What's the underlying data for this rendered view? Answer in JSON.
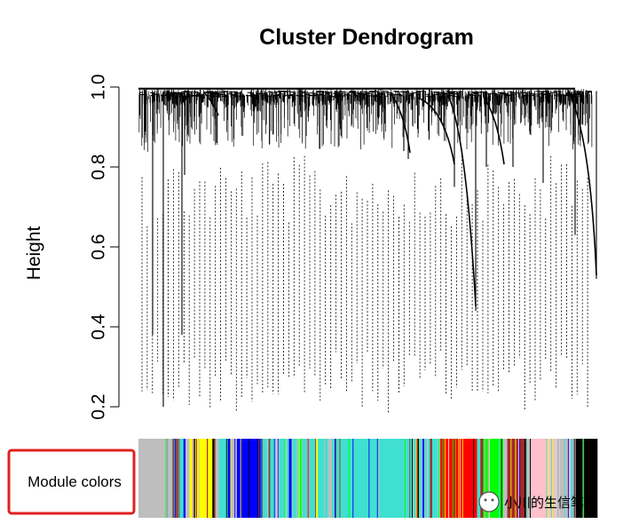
{
  "chart_data": {
    "type": "dendrogram",
    "title": "Cluster Dendrogram",
    "xlabel": "",
    "ylabel": "Height",
    "ylim": [
      0.2,
      1.0
    ],
    "y_ticks": [
      0.2,
      0.4,
      0.6,
      0.8,
      1.0
    ],
    "y_tick_labels": [
      "0.2",
      "0.4",
      "0.6",
      "0.8",
      "1.0"
    ],
    "module_colors_label": "Module colors",
    "module_colors": [
      {
        "color": "#bebebe",
        "span": 5
      },
      {
        "color": "#40e0d0",
        "span": 0.6
      },
      {
        "color": "#a52a2a",
        "span": 0.3
      },
      {
        "color": "#40e0d0",
        "span": 0.8
      },
      {
        "color": "#0000ff",
        "span": 0.3
      },
      {
        "color": "#bebebe",
        "span": 0.6
      },
      {
        "color": "#ffff00",
        "span": 0.4
      },
      {
        "color": "#bebebe",
        "span": 0.5
      },
      {
        "color": "#ffff00",
        "span": 2.5
      },
      {
        "color": "#000000",
        "span": 0.3
      },
      {
        "color": "#bebebe",
        "span": 0.8
      },
      {
        "color": "#40e0d0",
        "span": 1.2
      },
      {
        "color": "#0000ff",
        "span": 0.4
      },
      {
        "color": "#bebebe",
        "span": 0.6
      },
      {
        "color": "#0000ff",
        "span": 4.0
      },
      {
        "color": "#40e0d0",
        "span": 1.0
      },
      {
        "color": "#a52a2a",
        "span": 0.3
      },
      {
        "color": "#40e0d0",
        "span": 0.9
      },
      {
        "color": "#ffc0cb",
        "span": 0.4
      },
      {
        "color": "#40e0d0",
        "span": 1.5
      },
      {
        "color": "#0000ff",
        "span": 0.4
      },
      {
        "color": "#40e0d0",
        "span": 1.2
      },
      {
        "color": "#00ff00",
        "span": 0.3
      },
      {
        "color": "#40e0d0",
        "span": 0.8
      },
      {
        "color": "#a52a2a",
        "span": 0.3
      },
      {
        "color": "#40e0d0",
        "span": 1.0
      },
      {
        "color": "#ffff00",
        "span": 0.3
      },
      {
        "color": "#40e0d0",
        "span": 1.5
      },
      {
        "color": "#bebebe",
        "span": 0.6
      },
      {
        "color": "#40e0d0",
        "span": 12.5
      },
      {
        "color": "#a52a2a",
        "span": 0.4
      },
      {
        "color": "#40e0d0",
        "span": 0.6
      },
      {
        "color": "#0000ff",
        "span": 0.3
      },
      {
        "color": "#40e0d0",
        "span": 0.8
      },
      {
        "color": "#a52a2a",
        "span": 0.3
      },
      {
        "color": "#40e0d0",
        "span": 0.9
      },
      {
        "color": "#ffc0cb",
        "span": 0.3
      },
      {
        "color": "#ff0000",
        "span": 5.5
      },
      {
        "color": "#40e0d0",
        "span": 0.5
      },
      {
        "color": "#a52a2a",
        "span": 0.4
      },
      {
        "color": "#00ff00",
        "span": 3.0
      },
      {
        "color": "#bebebe",
        "span": 0.6
      },
      {
        "color": "#a52a2a",
        "span": 3.0
      },
      {
        "color": "#bebebe",
        "span": 0.6
      },
      {
        "color": "#ffc0cb",
        "span": 4.0
      },
      {
        "color": "#bebebe",
        "span": 1.8
      },
      {
        "color": "#40e0d0",
        "span": 0.5
      },
      {
        "color": "#000000",
        "span": 3.5
      }
    ]
  },
  "watermark": {
    "text": "小川的生信笔记"
  }
}
